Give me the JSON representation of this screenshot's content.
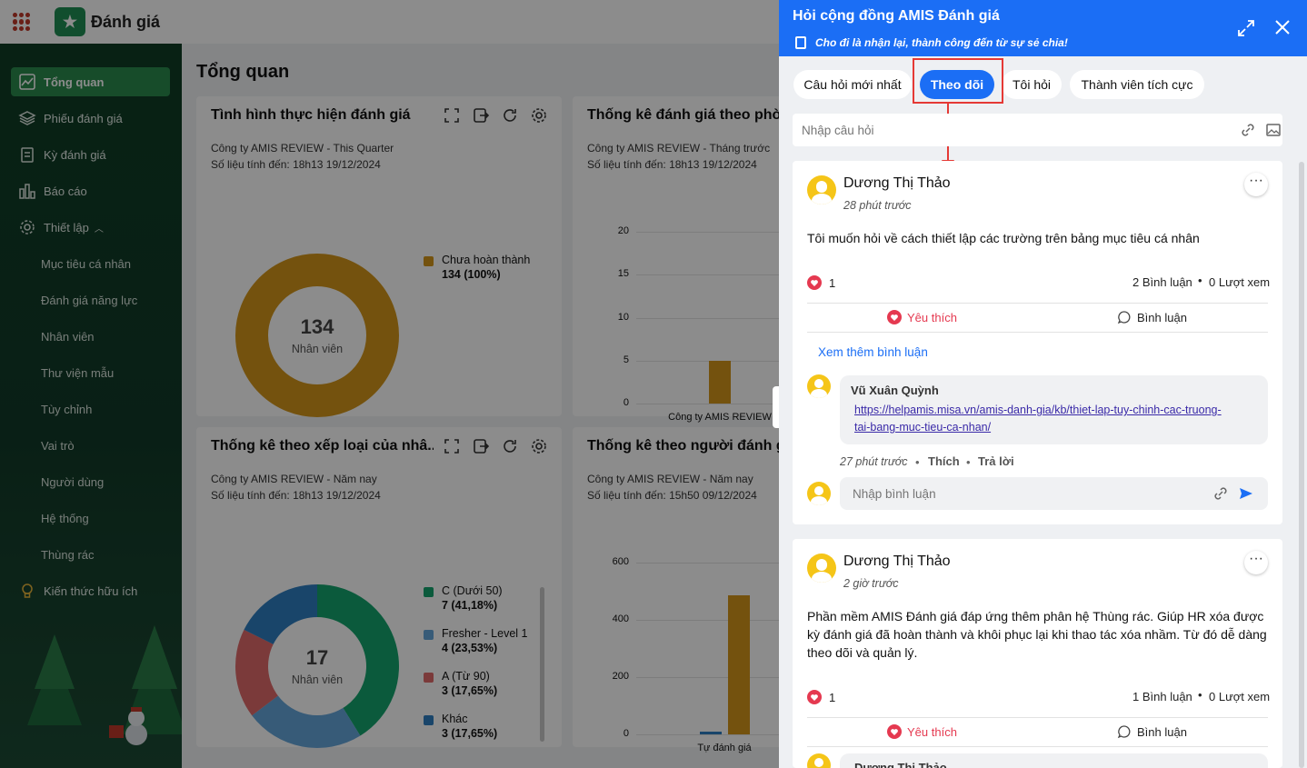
{
  "app": {
    "name": "Đánh giá"
  },
  "sidebar": {
    "items": [
      {
        "label": "Tổng quan",
        "icon": "chart-line-icon",
        "active": true
      },
      {
        "label": "Phiếu đánh giá",
        "icon": "layers-icon"
      },
      {
        "label": "Kỳ đánh giá",
        "icon": "clipboard-icon"
      },
      {
        "label": "Báo cáo",
        "icon": "bar-chart-icon"
      },
      {
        "label": "Thiết lập",
        "icon": "gear-icon"
      }
    ],
    "sub_items": [
      "Mục tiêu cá nhân",
      "Đánh giá năng lực",
      "Nhân viên",
      "Thư viện mẫu",
      "Tùy chỉnh",
      "Vai trò",
      "Người dùng",
      "Hệ thống",
      "Thùng rác"
    ],
    "bottom_item": {
      "label": "Kiến thức hữu ích",
      "icon": "lightbulb-icon"
    }
  },
  "main": {
    "title": "Tổng quan",
    "cards": [
      {
        "title": "Tình hình thực hiện đánh giá",
        "company": "Công ty AMIS REVIEW - This Quarter",
        "updated": "Số liệu tính đến: 18h13 19/12/2024"
      },
      {
        "title": "Thống kê đánh giá theo phòn",
        "company": "Công ty AMIS REVIEW - Tháng trước",
        "updated": "Số liệu tính đến: 18h13 19/12/2024"
      },
      {
        "title": "Thống kê theo xếp loại của nhâ...",
        "company": "Công ty AMIS REVIEW - Năm nay",
        "updated": "Số liệu tính đến: 18h13 19/12/2024"
      },
      {
        "title": "Thống kê theo người đánh gia",
        "company": "Công ty AMIS REVIEW - Năm nay",
        "updated": "Số liệu tính đến: 15h50 09/12/2024"
      }
    ]
  },
  "chart_data": [
    {
      "type": "pie",
      "center_value": "134",
      "center_label": "Nhân viên",
      "slices": [
        {
          "name": "Chưa hoàn thành",
          "detail": "134 (100%)",
          "value": 134,
          "color": "#d4961a"
        }
      ]
    },
    {
      "type": "bar",
      "categories": [
        "Công ty AMIS REVIEW"
      ],
      "values": [
        5
      ],
      "yticks": [
        "20",
        "15",
        "10",
        "5",
        "0"
      ],
      "ylim": [
        0,
        20
      ],
      "color": "#d4961a"
    },
    {
      "type": "pie",
      "center_value": "17",
      "center_label": "Nhân viên",
      "slices": [
        {
          "name": "C (Dưới 50)",
          "detail": "7 (41,18%)",
          "value": 7,
          "color": "#15a56d"
        },
        {
          "name": "Fresher - Level 1",
          "detail": "4 (23,53%)",
          "value": 4,
          "color": "#64a6da"
        },
        {
          "name": "A (Từ 90)",
          "detail": "3 (17,65%)",
          "value": 3,
          "color": "#e06b6b"
        },
        {
          "name": "Khác",
          "detail": "3 (17,65%)",
          "value": 3,
          "color": "#2f7fc1"
        }
      ]
    },
    {
      "type": "bar",
      "categories": [
        "Tự đánh giá"
      ],
      "series": [
        {
          "values": [
            10
          ],
          "color": "#2f7fc1"
        },
        {
          "values": [
            485
          ],
          "color": "#d4961a"
        }
      ],
      "yticks": [
        "600",
        "400",
        "200",
        "0"
      ],
      "ylim": [
        0,
        600
      ]
    }
  ],
  "panel": {
    "title": "Hỏi cộng đồng AMIS Đánh giá",
    "slogan": "Cho đi là nhận lại, thành công đến từ sự sẻ chia!",
    "tabs": [
      "Câu hỏi mới nhất",
      "Theo dõi",
      "Tôi hỏi",
      "Thành viên tích cực"
    ],
    "active_tab": "Theo dõi",
    "question_placeholder": "Nhập câu hỏi",
    "posts": [
      {
        "author": "Dương Thị Thảo",
        "time": "28 phút trước",
        "text": "Tôi muốn hỏi về cách thiết lập các trường trên bảng mục tiêu cá nhân",
        "likes": "1",
        "comments": "2 Bình luận",
        "views": "0 Lượt xem",
        "like_label": "Yêu thích",
        "comment_label": "Bình luận",
        "more_comments": "Xem thêm bình luận",
        "comment": {
          "author": "Vũ Xuân Quỳnh",
          "link_line1": "https://helpamis.misa.vn/amis-danh-gia/kb/thiet-lap-tuy-chinh-cac-truong-",
          "link_line2": "tai-bang-muc-tieu-ca-nhan/",
          "time": "27 phút trước",
          "like": "Thích",
          "reply": "Trả lời"
        },
        "comment_placeholder": "Nhập bình luận"
      },
      {
        "author": "Dương Thị Thảo",
        "time": "2 giờ trước",
        "text": "Phần mềm AMIS Đánh giá đáp ứng thêm phân hệ Thùng rác. Giúp HR xóa được kỳ đánh giá đã hoàn thành và khôi phục lại khi thao tác xóa nhầm. Từ đó dễ dàng theo dõi và quản lý.",
        "likes": "1",
        "comments": "1 Bình luận",
        "views": "0 Lượt xem",
        "like_label": "Yêu thích",
        "comment_label": "Bình luận",
        "next_comment_author": "Dương Thị Thảo"
      }
    ]
  },
  "colors": {
    "accent": "#1b6ef5",
    "sidebar_active": "#2b8a4e",
    "highlight": "#e53935"
  }
}
